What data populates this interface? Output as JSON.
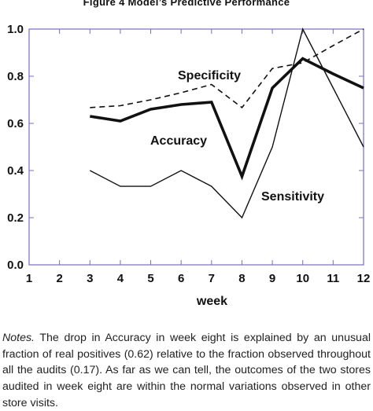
{
  "figure_title": "Figure 4   Model’s Predictive Performance",
  "notes_label": "Notes.",
  "notes_text": " The drop in Accuracy in week eight is explained by an unusual fraction of real positives (0.62) relative to the fraction observed throughout all the audits (0.17). As far as we can tell, the outcomes of the two stores audited in week eight are within the normal variations observed in other store visits.",
  "chart_data": {
    "type": "line",
    "title": "",
    "xlabel": "week",
    "ylabel": "",
    "xlim": [
      1,
      12
    ],
    "ylim": [
      0,
      1
    ],
    "x_ticks": [
      "1",
      "2",
      "3",
      "4",
      "5",
      "6",
      "7",
      "8",
      "9",
      "10",
      "11",
      "12"
    ],
    "y_ticks": [
      "0.0",
      "0.2",
      "0.4",
      "0.6",
      "0.8",
      "1.0"
    ],
    "grid": false,
    "legend": "none (series labelled directly on plot)",
    "x": [
      3,
      4,
      5,
      6,
      7,
      8,
      9,
      10,
      11,
      12
    ],
    "series": [
      {
        "name": "Specificity",
        "style": "dashed",
        "color": "#111111",
        "values": [
          0.667,
          0.675,
          0.7,
          0.73,
          0.765,
          0.667,
          0.833,
          0.857,
          0.93,
          1.0
        ]
      },
      {
        "name": "Accuracy",
        "style": "thick",
        "color": "#111111",
        "values": [
          0.63,
          0.61,
          0.66,
          0.68,
          0.69,
          0.375,
          0.75,
          0.875,
          0.81,
          0.75
        ]
      },
      {
        "name": "Sensitivity",
        "style": "thin",
        "color": "#111111",
        "values": [
          0.4,
          0.333,
          0.333,
          0.4,
          0.333,
          0.2,
          0.5,
          1.0,
          0.75,
          0.5
        ]
      }
    ]
  }
}
